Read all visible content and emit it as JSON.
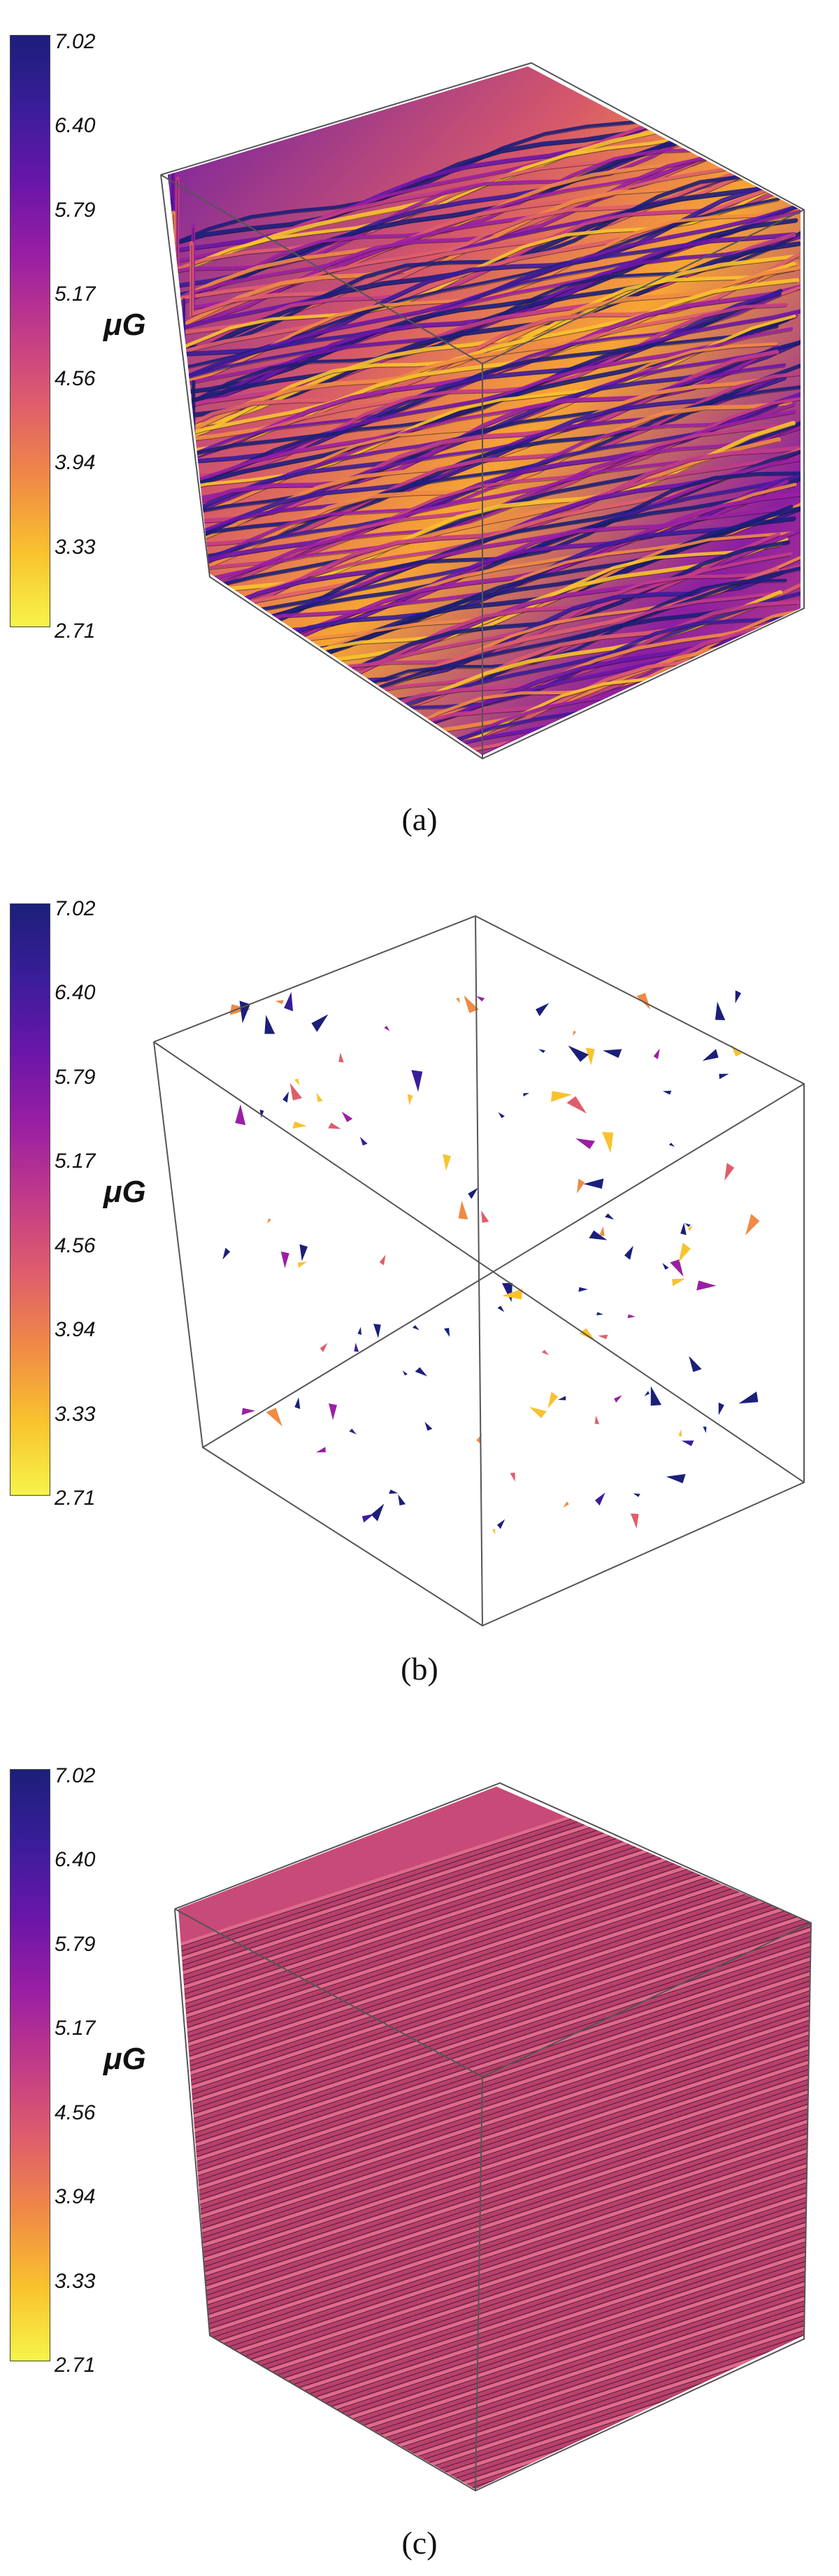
{
  "colorbar": {
    "unit": "μG",
    "ticks": [
      "7.02",
      "6.40",
      "5.79",
      "5.17",
      "4.56",
      "3.94",
      "3.33",
      "2.71"
    ],
    "gradient": [
      "#1b1f7a",
      "#3a1d9a",
      "#6a16a8",
      "#9a1fa3",
      "#c23b88",
      "#df5e6b",
      "#f08a45",
      "#f9c22e",
      "#f6f44a"
    ]
  },
  "panels": [
    {
      "caption": "(a)",
      "style": "turbulent"
    },
    {
      "caption": "(b)",
      "style": "sparse"
    },
    {
      "caption": "(c)",
      "style": "uniform"
    }
  ]
}
